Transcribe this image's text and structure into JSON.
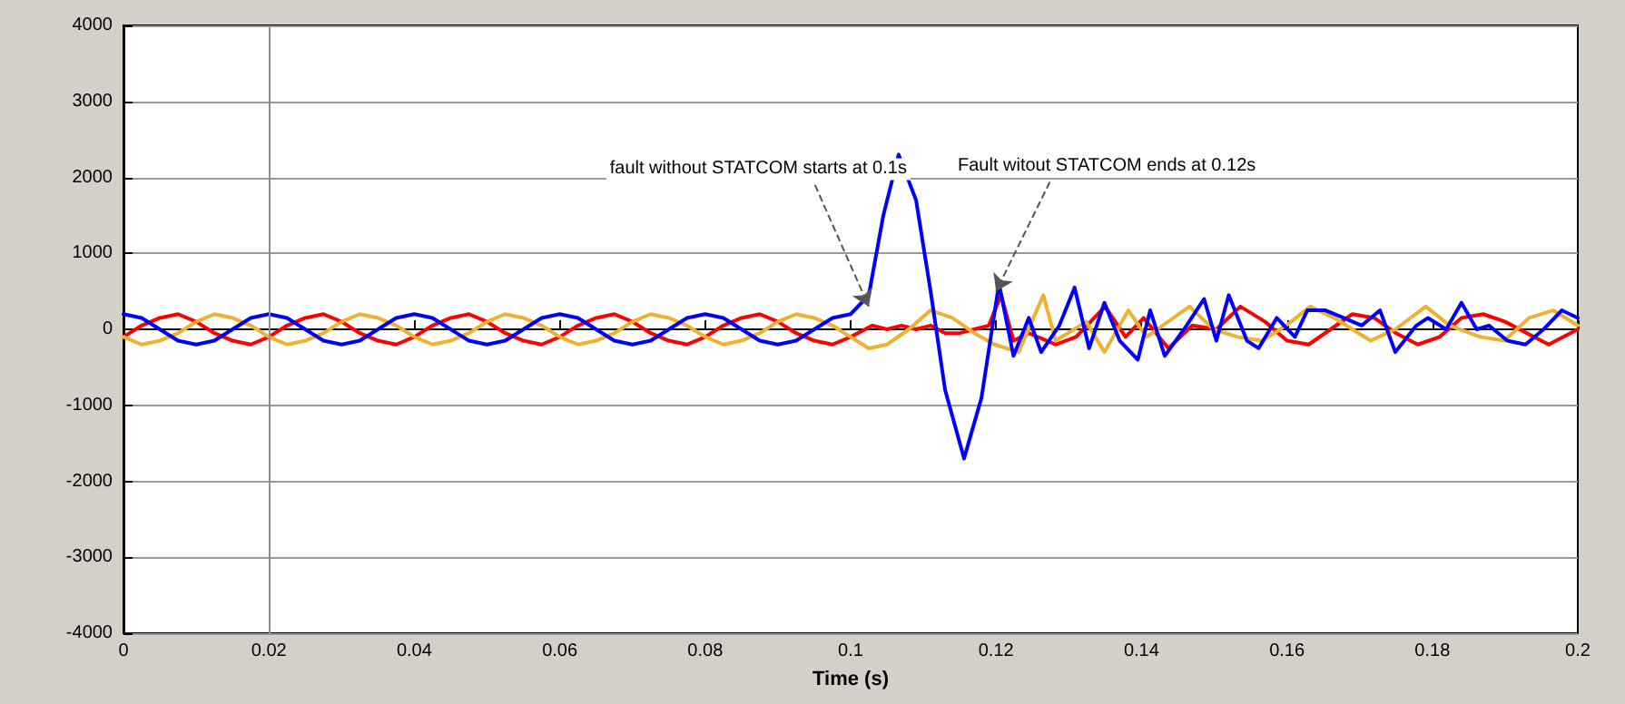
{
  "chart_data": {
    "type": "line",
    "xlabel": "Time (s)",
    "xlim": [
      0,
      0.2
    ],
    "xticks": [
      0,
      0.02,
      0.04,
      0.06,
      0.08,
      0.1,
      0.12,
      0.14,
      0.16,
      0.18,
      0.2
    ],
    "ylim": [
      -4000,
      4000
    ],
    "yticks": [
      -4000,
      -3000,
      -2000,
      -1000,
      0,
      1000,
      2000,
      3000,
      4000
    ],
    "grid": "y",
    "marker": "none",
    "line_style": "solid",
    "ref_lines": [
      {
        "axis": "x",
        "value": 0.02,
        "color": "#909090"
      }
    ],
    "annotations": [
      {
        "text": "fault without STATCOM starts at 0.1s",
        "x": 0.1025,
        "y": 300
      },
      {
        "text": "Fault witout STATCOM ends at 0.12s",
        "x": 0.12,
        "y": 500
      }
    ],
    "series": [
      {
        "color": "#ff0000",
        "x": [
          0,
          0.0025,
          0.005,
          0.0075,
          0.01,
          0.0125,
          0.015,
          0.0175,
          0.02,
          0.0225,
          0.025,
          0.0275,
          0.03,
          0.0325,
          0.035,
          0.0375,
          0.04,
          0.0425,
          0.045,
          0.0475,
          0.05,
          0.0525,
          0.055,
          0.0575,
          0.06,
          0.0625,
          0.065,
          0.0675,
          0.07,
          0.0725,
          0.075,
          0.0775,
          0.08,
          0.0825,
          0.085,
          0.0875,
          0.09,
          0.0925,
          0.095,
          0.0975,
          0.1,
          0.103,
          0.105,
          0.107,
          0.109,
          0.111,
          0.113,
          0.115,
          0.117,
          0.119,
          0.1207,
          0.1224,
          0.1245,
          0.1282,
          0.131,
          0.135,
          0.1378,
          0.1403,
          0.1437,
          0.147,
          0.1503,
          0.1536,
          0.157,
          0.16,
          0.163,
          0.166,
          0.169,
          0.172,
          0.175,
          0.178,
          0.181,
          0.184,
          0.187,
          0.19,
          0.193,
          0.196,
          0.2
        ],
        "values": [
          -100,
          50,
          150,
          200,
          100,
          -50,
          -150,
          -200,
          -100,
          50,
          150,
          200,
          100,
          -50,
          -150,
          -200,
          -100,
          50,
          150,
          200,
          100,
          -50,
          -150,
          -200,
          -100,
          50,
          150,
          200,
          100,
          -50,
          -150,
          -200,
          -100,
          50,
          150,
          200,
          100,
          -50,
          -150,
          -200,
          -100,
          50,
          0,
          50,
          0,
          50,
          -50,
          -50,
          0,
          50,
          450,
          -150,
          -50,
          -200,
          -100,
          300,
          -100,
          150,
          -250,
          50,
          0,
          300,
          100,
          -150,
          -200,
          0,
          200,
          150,
          -50,
          -200,
          -100,
          150,
          200,
          100,
          -50,
          -200,
          0
        ]
      },
      {
        "color": "#f0b030",
        "x": [
          0,
          0.0025,
          0.005,
          0.0075,
          0.01,
          0.0125,
          0.015,
          0.0175,
          0.02,
          0.0225,
          0.025,
          0.0275,
          0.03,
          0.0325,
          0.035,
          0.0375,
          0.04,
          0.0425,
          0.045,
          0.0475,
          0.05,
          0.0525,
          0.055,
          0.0575,
          0.06,
          0.0625,
          0.065,
          0.0675,
          0.07,
          0.0725,
          0.075,
          0.0775,
          0.08,
          0.0825,
          0.085,
          0.0875,
          0.09,
          0.0925,
          0.095,
          0.0975,
          0.1,
          0.1025,
          0.105,
          0.108,
          0.111,
          0.114,
          0.117,
          0.1198,
          0.1231,
          0.1265,
          0.1282,
          0.1324,
          0.1349,
          0.1382,
          0.1407,
          0.1466,
          0.1499,
          0.1532,
          0.1566,
          0.1599,
          0.1632,
          0.1665,
          0.1715,
          0.1749,
          0.1791,
          0.1824,
          0.1866,
          0.1899,
          0.1933,
          0.1966,
          0.2
        ],
        "values": [
          -100,
          -200,
          -150,
          -50,
          100,
          200,
          150,
          50,
          -100,
          -200,
          -150,
          -50,
          100,
          200,
          150,
          50,
          -100,
          -200,
          -150,
          -50,
          100,
          200,
          150,
          50,
          -100,
          -200,
          -150,
          -50,
          100,
          200,
          150,
          50,
          -100,
          -200,
          -150,
          -50,
          100,
          200,
          150,
          50,
          -100,
          -250,
          -200,
          0,
          250,
          150,
          -50,
          -200,
          -300,
          450,
          -150,
          100,
          -300,
          250,
          -100,
          300,
          0,
          -100,
          -150,
          50,
          300,
          150,
          -150,
          0,
          300,
          50,
          -100,
          -150,
          150,
          250,
          50
        ]
      },
      {
        "color": "#0000ff",
        "x": [
          0,
          0.0025,
          0.005,
          0.0075,
          0.01,
          0.0125,
          0.015,
          0.0175,
          0.02,
          0.0225,
          0.025,
          0.0275,
          0.03,
          0.0325,
          0.035,
          0.0375,
          0.04,
          0.0425,
          0.045,
          0.0475,
          0.05,
          0.0525,
          0.055,
          0.0575,
          0.06,
          0.0625,
          0.065,
          0.0675,
          0.07,
          0.0725,
          0.075,
          0.0775,
          0.08,
          0.0825,
          0.085,
          0.0875,
          0.09,
          0.0925,
          0.095,
          0.0975,
          0.1,
          0.1025,
          0.1045,
          0.1066,
          0.109,
          0.111,
          0.113,
          0.1156,
          0.118,
          0.1204,
          0.1224,
          0.1245,
          0.1262,
          0.1287,
          0.1308,
          0.1328,
          0.1349,
          0.137,
          0.1395,
          0.1412,
          0.1432,
          0.1462,
          0.1486,
          0.1503,
          0.152,
          0.1545,
          0.1561,
          0.1586,
          0.1611,
          0.1628,
          0.1653,
          0.1678,
          0.1703,
          0.1728,
          0.1749,
          0.1778,
          0.1794,
          0.1819,
          0.184,
          0.1861,
          0.1878,
          0.1903,
          0.1928,
          0.1953,
          0.1978,
          0.2
        ],
        "values": [
          200,
          150,
          0,
          -150,
          -200,
          -150,
          0,
          150,
          200,
          150,
          0,
          -150,
          -200,
          -150,
          0,
          150,
          200,
          150,
          0,
          -150,
          -200,
          -150,
          0,
          150,
          200,
          150,
          0,
          -150,
          -200,
          -150,
          0,
          150,
          200,
          150,
          0,
          -150,
          -200,
          -150,
          0,
          150,
          200,
          450,
          1500,
          2300,
          1700,
          500,
          -800,
          -1700,
          -900,
          600,
          -350,
          150,
          -300,
          50,
          550,
          -250,
          350,
          -150,
          -400,
          250,
          -350,
          50,
          400,
          -150,
          450,
          -150,
          -250,
          150,
          -100,
          250,
          250,
          150,
          50,
          250,
          -300,
          50,
          150,
          0,
          350,
          0,
          50,
          -150,
          -200,
          0,
          250,
          150
        ]
      }
    ]
  }
}
